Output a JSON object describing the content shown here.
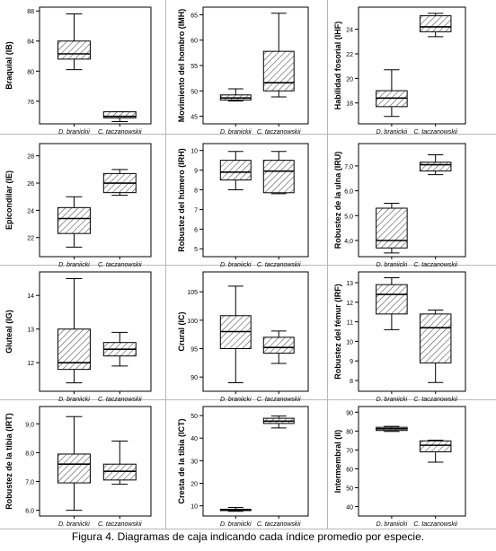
{
  "caption": "Figura 4. Diagramas de caja indicando cada índice promedio por especie.",
  "chart_data": [
    {
      "type": "box",
      "ylabel": "Braquial (IB)",
      "categories": [
        "D. branickii",
        "C. taczanowskii"
      ],
      "yticks": [
        76,
        80,
        84,
        88
      ],
      "ytick_labels": [
        "76",
        "80",
        "84",
        "88"
      ],
      "ylim": [
        73,
        88.5
      ],
      "boxes": [
        {
          "min": 80.2,
          "q1": 81.6,
          "median": 82.3,
          "q3": 84.0,
          "max": 87.6
        },
        {
          "min": 73.3,
          "q1": 73.8,
          "median": 74.0,
          "q3": 74.6,
          "max": 74.6
        }
      ]
    },
    {
      "type": "box",
      "ylabel": "Movimiento del hombro (IMH)",
      "categories": [
        "D. branickii",
        "C. taczanowskii"
      ],
      "yticks": [
        45,
        50,
        55,
        60,
        65
      ],
      "ytick_labels": [
        "45",
        "50",
        "55",
        "60",
        "65"
      ],
      "ylim": [
        43.5,
        66.5
      ],
      "boxes": [
        {
          "min": 48.0,
          "q1": 48.2,
          "median": 48.6,
          "q3": 49.2,
          "max": 50.4
        },
        {
          "min": 48.8,
          "q1": 50.0,
          "median": 51.6,
          "q3": 57.8,
          "max": 65.3
        }
      ]
    },
    {
      "type": "box",
      "ylabel": "Habilidad fosorial (IHF)",
      "categories": [
        "D. branickii",
        "C. taczanowskii"
      ],
      "yticks": [
        18,
        20,
        22,
        24
      ],
      "ytick_labels": [
        "18",
        "20",
        "22",
        "24"
      ],
      "ylim": [
        16.3,
        25.8
      ],
      "boxes": [
        {
          "min": 16.9,
          "q1": 17.7,
          "median": 18.4,
          "q3": 19.0,
          "max": 20.7
        },
        {
          "min": 23.4,
          "q1": 23.8,
          "median": 24.2,
          "q3": 25.1,
          "max": 25.3
        }
      ]
    },
    {
      "type": "box",
      "ylabel": "Epicondilar (IE)",
      "categories": [
        "D. braniicki",
        "C. taczanowskii"
      ],
      "yticks": [
        22,
        24,
        26,
        28
      ],
      "ytick_labels": [
        "22",
        "24",
        "26",
        "28"
      ],
      "ylim": [
        20.6,
        28.9
      ],
      "boxes": [
        {
          "min": 21.3,
          "q1": 22.3,
          "median": 23.4,
          "q3": 24.2,
          "max": 25.0
        },
        {
          "min": 25.1,
          "q1": 25.3,
          "median": 26.0,
          "q3": 26.7,
          "max": 27.0
        }
      ]
    },
    {
      "type": "box",
      "ylabel": "Robustez del húmero (IRH)",
      "categories": [
        "D. braniicki",
        "C. taczanowskii"
      ],
      "yticks": [
        5,
        6,
        7,
        8,
        9,
        10
      ],
      "ytick_labels": [
        "5",
        "6",
        "7",
        "8",
        "9",
        "10"
      ],
      "ylim": [
        4.6,
        10.35
      ],
      "boxes": [
        {
          "min": 8.0,
          "q1": 8.5,
          "median": 8.9,
          "q3": 9.5,
          "max": 9.95
        },
        {
          "min": 7.8,
          "q1": 7.85,
          "median": 8.95,
          "q3": 9.5,
          "max": 9.95
        }
      ]
    },
    {
      "type": "box",
      "ylabel": "Robustez de la ulna (IRU)",
      "categories": [
        "D. braniicki",
        "C. taczanowskii"
      ],
      "yticks": [
        4,
        5,
        6,
        7
      ],
      "ytick_labels": [
        "4,0",
        "5,0",
        "6,0",
        "7,0"
      ],
      "ylim": [
        3.35,
        7.9
      ],
      "boxes": [
        {
          "min": 3.5,
          "q1": 3.7,
          "median": 4.0,
          "q3": 5.3,
          "max": 5.5
        },
        {
          "min": 6.65,
          "q1": 6.8,
          "median": 7.05,
          "q3": 7.15,
          "max": 7.45
        }
      ]
    },
    {
      "type": "box",
      "ylabel": "Gluteal (IG)",
      "categories": [
        "D. braniicki",
        "C. taczanowskii"
      ],
      "yticks": [
        12,
        13,
        14
      ],
      "ytick_labels": [
        "12",
        "13",
        "14"
      ],
      "ylim": [
        11.15,
        14.7
      ],
      "boxes": [
        {
          "min": 11.4,
          "q1": 11.8,
          "median": 12.0,
          "q3": 13.0,
          "max": 14.5
        },
        {
          "min": 11.9,
          "q1": 12.2,
          "median": 12.4,
          "q3": 12.6,
          "max": 12.9
        }
      ]
    },
    {
      "type": "box",
      "ylabel": "Crural (IC)",
      "categories": [
        "D. braniicki",
        "C. taczanowskii"
      ],
      "yticks": [
        90,
        95,
        100,
        105
      ],
      "ytick_labels": [
        "90",
        "95",
        "100",
        "105"
      ],
      "ylim": [
        87.5,
        108.5
      ],
      "boxes": [
        {
          "min": 89.0,
          "q1": 95.0,
          "median": 98.0,
          "q3": 100.8,
          "max": 106.0
        },
        {
          "min": 92.4,
          "q1": 94.2,
          "median": 95.2,
          "q3": 97.0,
          "max": 98.1
        }
      ]
    },
    {
      "type": "box",
      "ylabel": "Robustez del fémur (IRF)",
      "categories": [
        "D. braniicki",
        "C. taczanowskii"
      ],
      "yticks": [
        8,
        9,
        10,
        11,
        12,
        13
      ],
      "ytick_labels": [
        "8",
        "9",
        "10",
        "11",
        "12",
        "13"
      ],
      "ylim": [
        7.45,
        13.55
      ],
      "boxes": [
        {
          "min": 10.6,
          "q1": 11.4,
          "median": 12.4,
          "q3": 12.9,
          "max": 13.25
        },
        {
          "min": 7.9,
          "q1": 8.9,
          "median": 10.7,
          "q3": 11.4,
          "max": 11.6
        }
      ]
    },
    {
      "type": "box",
      "ylabel": "Robustez de la tibia (IRT)",
      "categories": [
        "D. braniicki",
        "C. taczanowskii"
      ],
      "yticks": [
        6,
        7,
        8,
        9
      ],
      "ytick_labels": [
        "6,0",
        "7,0",
        "8,0",
        "9,0"
      ],
      "ylim": [
        5.8,
        9.6
      ],
      "boxes": [
        {
          "min": 6.0,
          "q1": 6.95,
          "median": 7.6,
          "q3": 7.95,
          "max": 9.25
        },
        {
          "min": 6.9,
          "q1": 7.05,
          "median": 7.35,
          "q3": 7.6,
          "max": 8.4
        }
      ]
    },
    {
      "type": "box",
      "ylabel": "Cresta de la tibia (ICT)",
      "categories": [
        "D. braniicki",
        "C. taczanowskii"
      ],
      "yticks": [
        10,
        20,
        30,
        40,
        50
      ],
      "ytick_labels": [
        "10",
        "20",
        "30",
        "40",
        "50"
      ],
      "ylim": [
        5.5,
        54
      ],
      "boxes": [
        {
          "min": 7.6,
          "q1": 7.9,
          "median": 8.2,
          "q3": 8.5,
          "max": 9.3
        },
        {
          "min": 44.5,
          "q1": 46.5,
          "median": 47.5,
          "q3": 48.8,
          "max": 49.8
        }
      ]
    },
    {
      "type": "box",
      "ylabel": "Intermembral (II)",
      "categories": [
        "D. braniicki",
        "C. taczanowskii"
      ],
      "yticks": [
        40,
        50,
        60,
        70,
        80,
        90
      ],
      "ytick_labels": [
        "40",
        "50",
        "60",
        "70",
        "80",
        "90"
      ],
      "ylim": [
        35,
        93
      ],
      "boxes": [
        {
          "min": 79.8,
          "q1": 80.3,
          "median": 81.2,
          "q3": 82.0,
          "max": 82.5
        },
        {
          "min": 63.5,
          "q1": 69.0,
          "median": 72.5,
          "q3": 74.8,
          "max": 75.2
        }
      ]
    }
  ]
}
